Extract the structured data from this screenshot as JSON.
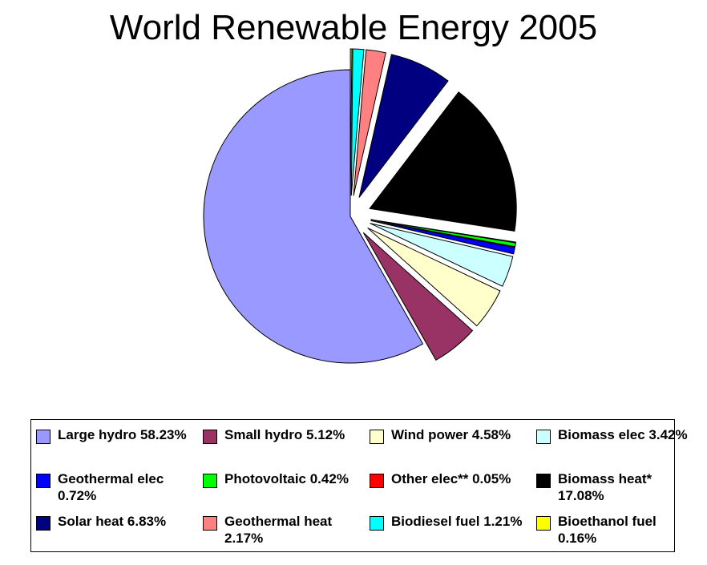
{
  "chart_data": {
    "type": "pie",
    "title": "World Renewable Energy 2005",
    "slices": [
      {
        "name": "Bioethanol fuel",
        "value": 0.16,
        "color": "#ffff00",
        "legend": "Bioethanol fuel 0.16%",
        "exploded": true
      },
      {
        "name": "Biodiesel fuel",
        "value": 1.21,
        "color": "#00ffff",
        "legend": "Biodiesel fuel 1.21%",
        "exploded": true
      },
      {
        "name": "Geothermal heat",
        "value": 2.17,
        "color": "#ff8080",
        "legend": "Geothermal heat 2.17%",
        "exploded": true
      },
      {
        "name": "Solar heat",
        "value": 6.83,
        "color": "#000080",
        "legend": "Solar heat 6.83%",
        "exploded": true
      },
      {
        "name": "Biomass heat*",
        "value": 17.08,
        "color": "#000000",
        "legend": "Biomass heat* 17.08%",
        "exploded": true
      },
      {
        "name": "Other elec**",
        "value": 0.05,
        "color": "#ff0000",
        "legend": "Other elec** 0.05%",
        "exploded": true
      },
      {
        "name": "Photovoltaic",
        "value": 0.42,
        "color": "#00ff00",
        "legend": "Photovoltaic 0.42%",
        "exploded": true
      },
      {
        "name": "Geothermal elec",
        "value": 0.72,
        "color": "#0000ff",
        "legend": "Geothermal elec 0.72%",
        "exploded": true
      },
      {
        "name": "Biomass elec",
        "value": 3.42,
        "color": "#ccffff",
        "legend": "Biomass elec 3.42%",
        "exploded": true
      },
      {
        "name": "Wind power",
        "value": 4.58,
        "color": "#ffffcc",
        "legend": "Wind power 4.58%",
        "exploded": true
      },
      {
        "name": "Small hydro",
        "value": 5.12,
        "color": "#993366",
        "legend": "Small hydro 5.12%",
        "exploded": true
      },
      {
        "name": "Large hydro",
        "value": 58.23,
        "color": "#9999ff",
        "legend": "Large hydro 58.23%",
        "exploded": false
      }
    ],
    "legend_order": [
      "Large hydro",
      "Small hydro",
      "Wind power",
      "Biomass elec",
      "Geothermal elec",
      "Photovoltaic",
      "Other elec**",
      "Biomass heat*",
      "Solar heat",
      "Geothermal heat",
      "Biodiesel fuel",
      "Bioethanol fuel"
    ],
    "legend_position": "bottom"
  }
}
